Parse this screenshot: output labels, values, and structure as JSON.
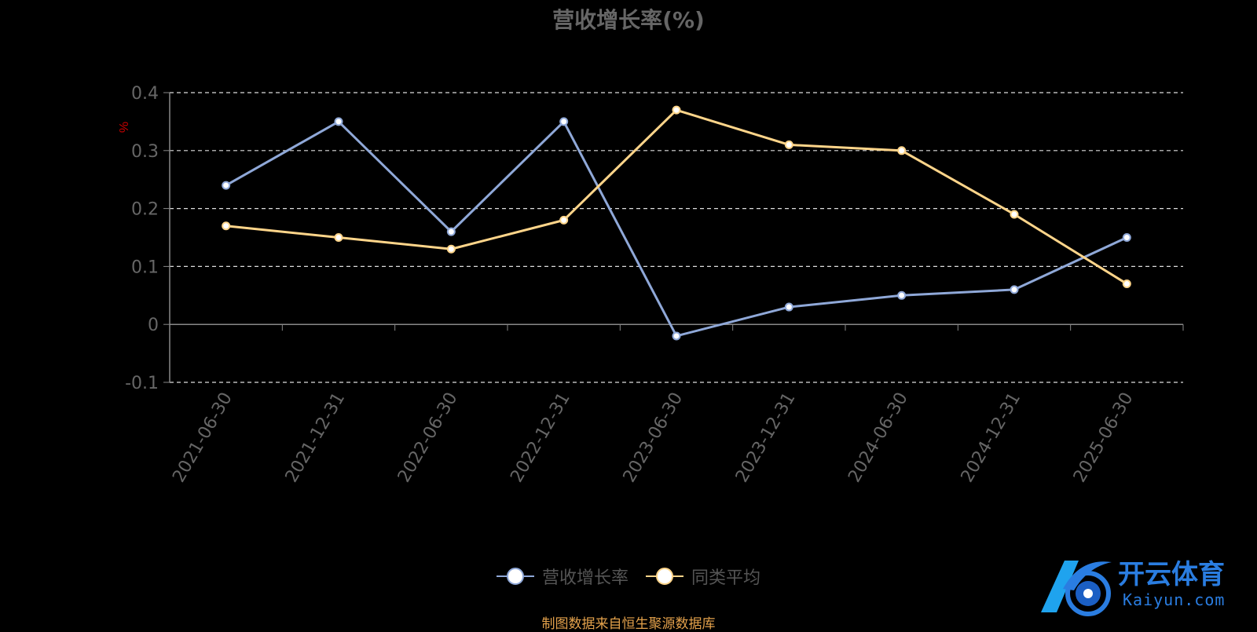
{
  "chart_data": {
    "type": "line",
    "title": "营收增长率(%)",
    "ylabel": "%",
    "xlabel": "",
    "categories": [
      "2021-06-30",
      "2021-12-31",
      "2022-06-30",
      "2022-12-31",
      "2023-06-30",
      "2023-12-31",
      "2024-06-30",
      "2024-12-31",
      "2025-06-30"
    ],
    "series": [
      {
        "name": "营收增长率",
        "color": "#8fa8d8",
        "values": [
          0.24,
          0.35,
          0.16,
          0.35,
          -0.02,
          0.03,
          0.05,
          0.06,
          0.15
        ]
      },
      {
        "name": "同类平均",
        "color": "#ffd58a",
        "values": [
          0.17,
          0.15,
          0.13,
          0.18,
          0.37,
          0.31,
          0.3,
          0.19,
          0.07
        ]
      }
    ],
    "ylim": [
      -0.1,
      0.4
    ],
    "yticks": [
      "0.4",
      "0.3",
      "0.2",
      "0.1",
      "0",
      "-0.1"
    ],
    "grid": true,
    "legend_position": "bottom-center"
  },
  "source_note": "制图数据来自恒生聚源数据库",
  "watermark": {
    "text": "开云体育",
    "sub": "Kaiyun.com"
  }
}
